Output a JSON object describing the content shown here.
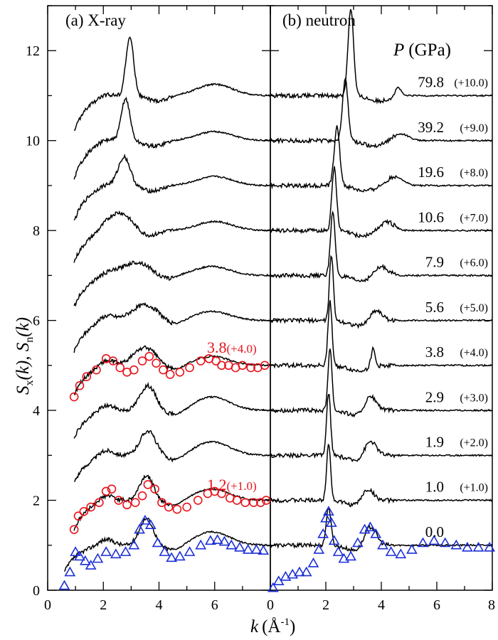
{
  "chart_data": {
    "type": "line",
    "ylabel": "S_x(k), S_n(k)",
    "xlabel": "k (Å^-1)",
    "ylim": [
      0,
      13
    ],
    "y_ticks": [
      "0",
      "2",
      "4",
      "6",
      "8",
      "10",
      "12"
    ],
    "legend_title": "P (GPa)",
    "panels": [
      {
        "title": "(a) X-ray",
        "xlim": [
          0,
          8
        ],
        "x_ticks": [
          "0",
          "2",
          "4",
          "6",
          "8"
        ],
        "curves": [
          {
            "pressure": "0.0",
            "offset": 0,
            "kmin": 0.6,
            "y0": 0.4,
            "peak1_k": 3.55,
            "peak1_h": 0.6,
            "peak1_w": 0.35,
            "peak2_k": 5.9,
            "peak2_h": 0.3
          },
          {
            "pressure": "1.0",
            "offset": 1,
            "kmin": 0.95,
            "y0": 0.35,
            "peak1_k": 3.55,
            "peak1_h": 0.55,
            "peak1_w": 0.35,
            "peak2_k": 5.9,
            "peak2_h": 0.25
          },
          {
            "pressure": "1.9",
            "offset": 2,
            "kmin": 0.95,
            "y0": 0.4,
            "peak1_k": 3.6,
            "peak1_h": 0.55,
            "peak1_w": 0.4,
            "peak2_k": 5.9,
            "peak2_h": 0.3
          },
          {
            "pressure": "2.9",
            "offset": 3,
            "kmin": 0.95,
            "y0": 0.4,
            "peak1_k": 3.6,
            "peak1_h": 0.55,
            "peak1_w": 0.4,
            "peak2_k": 5.9,
            "peak2_h": 0.3
          },
          {
            "pressure": "3.8",
            "offset": 4,
            "kmin": 0.95,
            "y0": 0.35,
            "peak1_k": 3.5,
            "peak1_h": 0.4,
            "peak1_w": 0.6,
            "peak2_k": 5.9,
            "peak2_h": 0.2
          },
          {
            "pressure": "5.6",
            "offset": 5,
            "kmin": 0.95,
            "y0": 0.3,
            "peak1_k": 3.5,
            "peak1_h": 0.35,
            "peak1_w": 0.7,
            "peak2_k": 5.9,
            "peak2_h": 0.2
          },
          {
            "pressure": "7.9",
            "offset": 6,
            "kmin": 0.95,
            "y0": 0.3,
            "peak1_k": 3.2,
            "peak1_h": 0.3,
            "peak1_w": 0.8,
            "peak2_k": 5.9,
            "peak2_h": 0.2
          },
          {
            "pressure": "10.6",
            "offset": 7,
            "kmin": 0.95,
            "y0": 0.3,
            "peak1_k": 2.6,
            "peak1_h": 0.4,
            "peak1_w": 0.6,
            "peak2_k": 6.0,
            "peak2_h": 0.2
          },
          {
            "pressure": "19.6",
            "offset": 8,
            "kmin": 0.95,
            "y0": 0.2,
            "peak1_k": 2.75,
            "peak1_h": 0.65,
            "peak1_w": 0.3,
            "peak2_k": 6.0,
            "peak2_h": 0.2
          },
          {
            "pressure": "39.2",
            "offset": 9,
            "kmin": 0.95,
            "y0": 0.15,
            "peak1_k": 2.8,
            "peak1_h": 0.95,
            "peak1_w": 0.22,
            "peak2_k": 6.0,
            "peak2_h": 0.2
          },
          {
            "pressure": "79.8",
            "offset": 10,
            "kmin": 0.95,
            "y0": 0.2,
            "peak1_k": 2.95,
            "peak1_h": 1.3,
            "peak1_w": 0.2,
            "peak2_k": 6.0,
            "peak2_h": 0.25
          }
        ],
        "annotations": [
          {
            "text": "3.8",
            "sub": "(+4.0)",
            "color": "#e8121b",
            "k": 5.6,
            "y": 5.25
          },
          {
            "text": "1.2",
            "sub": "(+1.0)",
            "color": "#e8121b",
            "k": 5.6,
            "y": 2.25
          }
        ],
        "markers": [
          {
            "name": "red-circles-3.8",
            "shape": "circle",
            "color": "#e8121b",
            "x": [
              0.95,
              1.15,
              1.4,
              1.75,
              2.1,
              2.35,
              2.6,
              2.85,
              3.1,
              3.4,
              3.65,
              3.9,
              4.15,
              4.4,
              4.75,
              5.1,
              5.5,
              5.8,
              6.05,
              6.25,
              6.5,
              6.75,
              7.0,
              7.3,
              7.55,
              7.8
            ],
            "y": [
              4.3,
              4.55,
              4.75,
              4.9,
              5.15,
              5.1,
              4.95,
              4.85,
              4.9,
              5.1,
              5.2,
              5.05,
              4.9,
              4.8,
              4.85,
              4.95,
              5.1,
              5.15,
              5.1,
              5.0,
              5.0,
              4.95,
              5.0,
              4.95,
              4.95,
              5.0
            ]
          },
          {
            "name": "red-circles-1.2",
            "shape": "circle",
            "color": "#e8121b",
            "x": [
              0.95,
              1.1,
              1.3,
              1.55,
              1.85,
              2.1,
              2.3,
              2.55,
              2.85,
              3.15,
              3.4,
              3.6,
              3.85,
              4.1,
              4.35,
              4.65,
              5.0,
              5.4,
              5.75,
              6.0,
              6.25,
              6.55,
              6.8,
              7.1,
              7.4,
              7.65,
              7.85
            ],
            "y": [
              1.35,
              1.65,
              1.75,
              1.85,
              1.95,
              2.2,
              2.25,
              2.0,
              1.9,
              1.95,
              2.1,
              2.35,
              2.25,
              1.95,
              1.85,
              1.8,
              1.85,
              2.0,
              2.15,
              2.2,
              2.15,
              2.05,
              2.0,
              1.95,
              1.95,
              1.95,
              2.0
            ]
          },
          {
            "name": "blue-triangles-0.0",
            "shape": "triangle",
            "color": "#1c2fd6",
            "x": [
              0.6,
              0.8,
              1.0,
              1.15,
              1.35,
              1.55,
              1.8,
              2.1,
              2.45,
              2.8,
              3.1,
              3.3,
              3.5,
              3.7,
              3.95,
              4.2,
              4.45,
              4.75,
              5.1,
              5.5,
              5.85,
              6.1,
              6.35,
              6.6,
              6.9,
              7.2,
              7.5,
              7.75
            ],
            "y": [
              0.1,
              0.4,
              0.85,
              0.75,
              0.65,
              0.55,
              0.7,
              0.85,
              0.8,
              0.85,
              1.0,
              1.35,
              1.55,
              1.45,
              1.05,
              0.85,
              0.72,
              0.75,
              0.85,
              1.0,
              1.1,
              1.12,
              1.08,
              1.0,
              0.95,
              0.9,
              0.9,
              0.88
            ]
          }
        ]
      },
      {
        "title": "(b) neutron",
        "xlim": [
          0,
          8
        ],
        "x_ticks": [
          "0",
          "2",
          "4",
          "6",
          "8"
        ],
        "curves": [
          {
            "pressure": "0.0",
            "offset": 0,
            "kmin": 0.0,
            "y0": 1.0,
            "peak1_k": 2.1,
            "peak1_h": 0.85,
            "peak1_w": 0.12,
            "peak2_k": 3.6,
            "peak2_h": 0.45,
            "peak2_w": 0.3
          },
          {
            "pressure": "1.0",
            "offset": 1,
            "kmin": 0.0,
            "y0": 1.0,
            "peak1_k": 2.1,
            "peak1_h": 1.3,
            "peak1_w": 0.1,
            "peak2_k": 3.5,
            "peak2_h": 0.3,
            "peak2_w": 0.3
          },
          {
            "pressure": "1.9",
            "offset": 2,
            "kmin": 0.0,
            "y0": 1.0,
            "peak1_k": 2.1,
            "peak1_h": 1.4,
            "peak1_w": 0.1,
            "peak2_k": 3.6,
            "peak2_h": 0.35,
            "peak2_w": 0.3
          },
          {
            "pressure": "2.9",
            "offset": 3,
            "kmin": 0.0,
            "y0": 1.0,
            "peak1_k": 2.15,
            "peak1_h": 1.4,
            "peak1_w": 0.1,
            "peak2_k": 3.6,
            "peak2_h": 0.35,
            "peak2_w": 0.3
          },
          {
            "pressure": "3.8",
            "offset": 4,
            "kmin": 0.0,
            "y0": 1.0,
            "peak1_k": 2.15,
            "peak1_h": 1.45,
            "peak1_w": 0.1,
            "peak2_k": 3.7,
            "peak2_h": 0.4,
            "peak2_w": 0.1
          },
          {
            "pressure": "5.6",
            "offset": 5,
            "kmin": 0.0,
            "y0": 1.0,
            "peak1_k": 2.2,
            "peak1_h": 1.45,
            "peak1_w": 0.1,
            "peak2_k": 3.8,
            "peak2_h": 0.25,
            "peak2_w": 0.3
          },
          {
            "pressure": "7.9",
            "offset": 6,
            "kmin": 0.0,
            "y0": 1.0,
            "peak1_k": 2.25,
            "peak1_h": 1.4,
            "peak1_w": 0.12,
            "peak2_k": 4.0,
            "peak2_h": 0.2,
            "peak2_w": 0.35
          },
          {
            "pressure": "10.6",
            "offset": 7,
            "kmin": 0.0,
            "y0": 1.0,
            "peak1_k": 2.3,
            "peak1_h": 1.4,
            "peak1_w": 0.12,
            "peak2_k": 4.2,
            "peak2_h": 0.2,
            "peak2_w": 0.35
          },
          {
            "pressure": "19.6",
            "offset": 8,
            "kmin": 0.0,
            "y0": 1.0,
            "peak1_k": 2.4,
            "peak1_h": 1.3,
            "peak1_w": 0.14,
            "peak2_k": 4.5,
            "peak2_h": 0.2,
            "peak2_w": 0.4
          },
          {
            "pressure": "39.2",
            "offset": 9,
            "kmin": 0.0,
            "y0": 1.0,
            "peak1_k": 2.7,
            "peak1_h": 1.35,
            "peak1_w": 0.14,
            "peak2_k": 4.7,
            "peak2_h": 0.15,
            "peak2_w": 0.4
          },
          {
            "pressure": "79.8",
            "offset": 10,
            "kmin": 0.0,
            "y0": 1.0,
            "peak1_k": 2.9,
            "peak1_h": 1.95,
            "peak1_w": 0.14,
            "peak2_k": 4.6,
            "peak2_h": 0.2,
            "peak2_w": 0.15
          }
        ],
        "pressure_labels": [
          {
            "value": "79.8",
            "offset": "(+10.0)",
            "y": 11.25
          },
          {
            "value": "39.2",
            "offset": "(+9.0)",
            "y": 10.25
          },
          {
            "value": "19.6",
            "offset": "(+8.0)",
            "y": 9.25
          },
          {
            "value": "10.6",
            "offset": "(+7.0)",
            "y": 8.25
          },
          {
            "value": "7.9",
            "offset": "(+6.0)",
            "y": 7.25
          },
          {
            "value": "5.6",
            "offset": "(+5.0)",
            "y": 6.25
          },
          {
            "value": "3.8",
            "offset": "(+4.0)",
            "y": 5.25
          },
          {
            "value": "2.9",
            "offset": "(+3.0)",
            "y": 4.25
          },
          {
            "value": "1.9",
            "offset": "(+2.0)",
            "y": 3.25
          },
          {
            "value": "1.0",
            "offset": "(+1.0)",
            "y": 2.25
          },
          {
            "value": "0.0",
            "offset": "",
            "y": 1.25
          }
        ],
        "markers": [
          {
            "name": "blue-triangles-0.0-neutron",
            "shape": "triangle",
            "color": "#1c2fd6",
            "x": [
              0.1,
              0.3,
              0.55,
              0.8,
              1.05,
              1.3,
              1.55,
              1.75,
              1.9,
              2.0,
              2.1,
              2.2,
              2.3,
              2.45,
              2.65,
              2.9,
              3.15,
              3.4,
              3.6,
              3.8,
              4.05,
              4.35,
              4.7,
              5.1,
              5.5,
              5.9,
              6.3,
              6.7,
              7.1,
              7.5,
              7.9
            ],
            "y": [
              0.05,
              0.2,
              0.3,
              0.35,
              0.4,
              0.4,
              0.6,
              0.9,
              1.25,
              1.6,
              1.75,
              1.5,
              1.1,
              0.85,
              0.7,
              0.75,
              1.05,
              1.35,
              1.4,
              1.25,
              1.0,
              0.85,
              0.8,
              0.9,
              1.05,
              1.1,
              1.05,
              1.0,
              0.95,
              0.95,
              0.95
            ]
          }
        ]
      }
    ],
    "colors": {
      "red": "#e8121b",
      "blue": "#1c2fd6",
      "line": "#000000"
    }
  },
  "texts": {
    "panel_a_title": "(a) X-ray",
    "panel_b_title": "(b) neutron",
    "legend_title_p": "P",
    "legend_title_unit": "(GPa)",
    "x_axis_k": "k",
    "x_axis_unit": "(Å",
    "x_axis_exp": "-1",
    "x_axis_close": ")",
    "y_axis_s": "S",
    "y_axis_x": "x",
    "y_axis_k1": "(k), ",
    "y_axis_n": "n",
    "y_axis_k2": "(k)",
    "annot_38": "3.8",
    "annot_38_off": "(+4.0)",
    "annot_12": "1.2",
    "annot_12_off": "(+1.0)"
  }
}
